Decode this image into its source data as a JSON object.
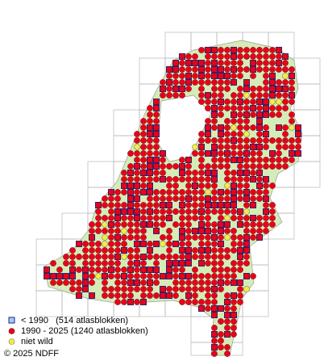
{
  "legend": {
    "items": [
      {
        "label": "< 1990   (514 atlasblokken)"
      },
      {
        "label": "1990 - 2025 (1240 atlasblokken)"
      },
      {
        "label": "niet wild"
      }
    ]
  },
  "copyright": "© 2025 NDFF"
}
